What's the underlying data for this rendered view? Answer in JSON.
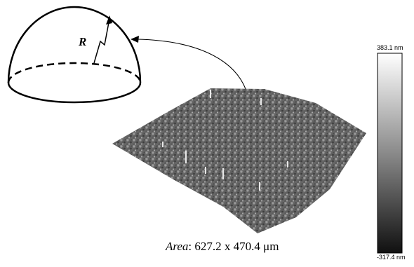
{
  "dome": {
    "radius_label": "R"
  },
  "scale_bar": {
    "max_label": "383.1 nm",
    "min_label": "-317.4 nm",
    "top_color": "#ffffff",
    "bottom_color": "#101010"
  },
  "caption": {
    "label": "Area",
    "separator": ": ",
    "value": "627.2 x 470.4 μm"
  },
  "surface": {
    "base_color": "#6e6e6e"
  }
}
